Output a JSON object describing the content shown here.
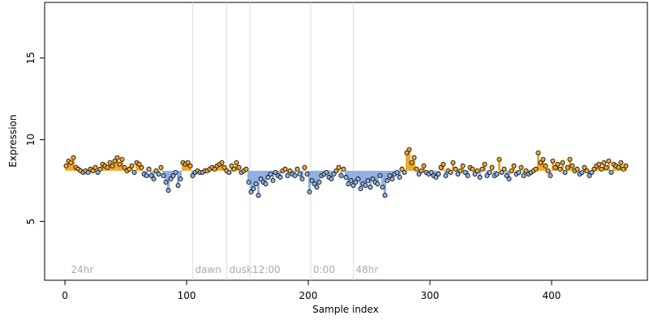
{
  "chart_data": {
    "type": "scatter",
    "xlabel": "Sample index",
    "ylabel": "Expression",
    "xlim": [
      -16.7,
      478.7
    ],
    "ylim": [
      1.4,
      18.4
    ],
    "xticks": [
      0,
      100,
      200,
      300,
      400
    ],
    "yticks": [
      5,
      10,
      15
    ],
    "baseline": 8.1,
    "series": [
      {
        "name": "Expression",
        "color": "#f0a830",
        "low_color": "#8fb0e0",
        "x": [
          1,
          3,
          5,
          7,
          9,
          11,
          13,
          15,
          17,
          19,
          21,
          23,
          25,
          27,
          29,
          31,
          33,
          35,
          37,
          39,
          41,
          43,
          45,
          47,
          49,
          51,
          53,
          55,
          57,
          59,
          61,
          63,
          65,
          67,
          69,
          71,
          73,
          75,
          77,
          79,
          81,
          83,
          85,
          87,
          89,
          91,
          93,
          95,
          97,
          99,
          101,
          103,
          105,
          107,
          109,
          111,
          113,
          115,
          117,
          119,
          121,
          123,
          125,
          127,
          129,
          131,
          133,
          135,
          137,
          139,
          141,
          143,
          145,
          147,
          149,
          151,
          153,
          155,
          157,
          159,
          161,
          163,
          165,
          167,
          169,
          171,
          173,
          175,
          177,
          179,
          181,
          183,
          185,
          187,
          189,
          191,
          193,
          195,
          197,
          199,
          201,
          203,
          205,
          207,
          209,
          211,
          213,
          215,
          217,
          219,
          221,
          223,
          225,
          227,
          229,
          231,
          233,
          235,
          237,
          239,
          241,
          243,
          245,
          247,
          249,
          251,
          253,
          255,
          257,
          259,
          261,
          263,
          265,
          267,
          269,
          271,
          273,
          275,
          277,
          279,
          281,
          283,
          285,
          287,
          289,
          291,
          293,
          295,
          297,
          299,
          301,
          303,
          305,
          307,
          309,
          311,
          313,
          315,
          317,
          319,
          321,
          323,
          325,
          327,
          329,
          331,
          333,
          335,
          337,
          339,
          341,
          343,
          345,
          347,
          349,
          351,
          353,
          355,
          357,
          359,
          361,
          363,
          365,
          367,
          369,
          371,
          373,
          375,
          377,
          379,
          381,
          383,
          385,
          387,
          389,
          391,
          393,
          395,
          397,
          399,
          401,
          403,
          405,
          407,
          409,
          411,
          413,
          415,
          417,
          419,
          421,
          423,
          425,
          427,
          429,
          431,
          433,
          435,
          437,
          439,
          441,
          443,
          445,
          447,
          449,
          451,
          453,
          455,
          457,
          459,
          461
        ],
        "values": [
          8.4,
          8.7,
          8.6,
          8.9,
          8.3,
          8.2,
          8.1,
          8.0,
          8.1,
          8.0,
          8.2,
          8.1,
          8.3,
          8.0,
          8.2,
          8.5,
          8.4,
          8.3,
          8.6,
          8.4,
          8.7,
          8.9,
          8.5,
          8.8,
          8.3,
          8.1,
          8.2,
          8.4,
          8.0,
          8.6,
          8.5,
          8.3,
          7.9,
          7.8,
          8.2,
          7.8,
          7.6,
          8.1,
          7.9,
          8.3,
          7.8,
          7.4,
          6.9,
          7.6,
          7.8,
          8.0,
          7.2,
          7.6,
          8.6,
          8.5,
          8.6,
          8.4,
          7.8,
          8.0,
          8.1,
          8.0,
          8.0,
          8.1,
          8.1,
          8.2,
          8.3,
          8.2,
          8.4,
          8.5,
          8.6,
          8.3,
          8.1,
          8.0,
          8.4,
          8.2,
          8.6,
          8.3,
          8.0,
          8.1,
          8.2,
          7.4,
          6.8,
          7.0,
          7.3,
          6.6,
          7.6,
          7.4,
          7.3,
          7.7,
          7.9,
          7.5,
          8.0,
          7.8,
          7.7,
          8.1,
          8.2,
          7.8,
          8.1,
          7.9,
          7.8,
          8.2,
          7.9,
          7.6,
          8.3,
          7.9,
          6.8,
          7.5,
          7.3,
          7.1,
          7.4,
          7.8,
          7.9,
          8.0,
          7.7,
          7.6,
          7.9,
          8.1,
          8.3,
          7.8,
          8.2,
          7.7,
          7.3,
          7.5,
          7.2,
          7.4,
          7.6,
          7.0,
          7.3,
          7.2,
          7.5,
          7.1,
          7.6,
          7.4,
          7.3,
          7.8,
          7.1,
          6.6,
          7.5,
          7.8,
          7.6,
          7.9,
          8.0,
          7.7,
          8.2,
          8.0,
          9.2,
          9.4,
          8.6,
          8.9,
          8.2,
          7.9,
          8.1,
          8.4,
          8.0,
          7.9,
          8.0,
          7.8,
          7.7,
          7.9,
          8.3,
          8.5,
          7.8,
          8.1,
          8.0,
          8.6,
          8.2,
          7.9,
          8.1,
          8.4,
          8.0,
          7.8,
          8.3,
          8.2,
          7.9,
          8.1,
          7.7,
          8.2,
          8.5,
          7.8,
          8.0,
          8.3,
          7.8,
          7.9,
          8.8,
          8.0,
          8.2,
          7.8,
          7.6,
          8.1,
          8.4,
          7.9,
          8.0,
          8.3,
          7.8,
          8.1,
          7.9,
          8.0,
          8.1,
          8.2,
          9.2,
          8.6,
          8.8,
          8.4,
          8.1,
          7.8,
          8.7,
          8.3,
          8.5,
          8.2,
          8.6,
          8.0,
          8.3,
          8.8,
          8.4,
          8.1,
          8.2,
          7.9,
          8.0,
          8.3,
          8.1,
          7.8,
          8.0,
          8.2,
          8.4,
          8.5,
          8.2,
          8.6,
          8.3,
          8.7,
          8.0,
          8.5,
          8.4,
          8.3,
          8.6,
          8.2,
          8.4
        ]
      }
    ],
    "annotations": [
      {
        "x": 3,
        "label": "24hr",
        "line": false
      },
      {
        "x": 105,
        "label": "dawn",
        "line": true
      },
      {
        "x": 133,
        "label": "dusk",
        "line": true
      },
      {
        "x": 152,
        "label": "12:00",
        "line": true
      },
      {
        "x": 202,
        "label": "0:00",
        "line": true
      },
      {
        "x": 237,
        "label": "48hr",
        "line": true
      }
    ]
  }
}
